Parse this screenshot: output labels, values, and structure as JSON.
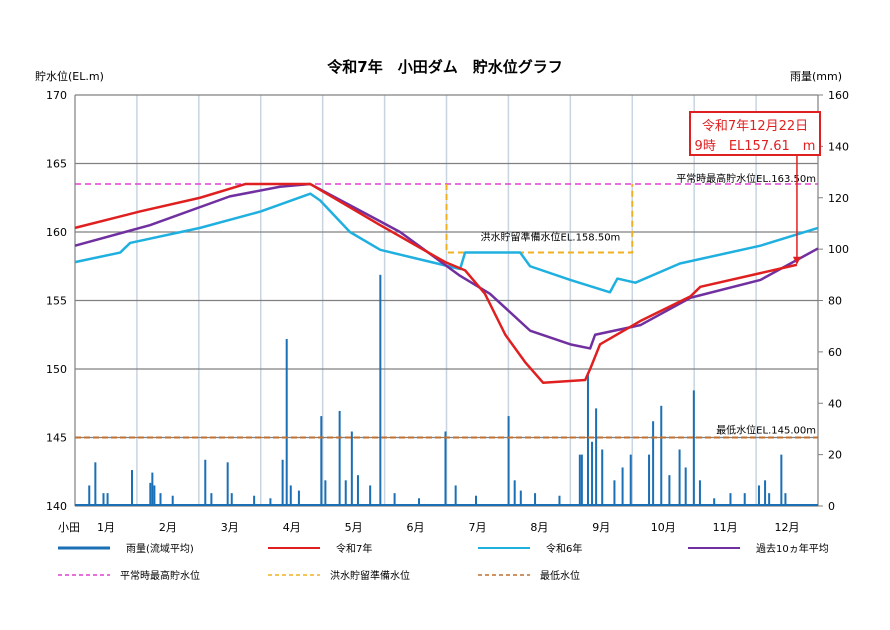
{
  "chart_data": {
    "type": "line",
    "title": "令和7年　小田ダム　貯水位グラフ",
    "ylabel_left": "貯水位(EL.m)",
    "ylabel_right": "雨量(mm)",
    "ylim_left": [
      140,
      170
    ],
    "yticks_left": [
      140,
      145,
      150,
      155,
      160,
      165,
      170
    ],
    "ylim_right": [
      0,
      160
    ],
    "yticks_right": [
      0,
      20,
      40,
      60,
      80,
      100,
      120,
      140,
      160
    ],
    "x_prefix_label": "小田",
    "months": [
      "1月",
      "2月",
      "3月",
      "4月",
      "5月",
      "6月",
      "7月",
      "8月",
      "9月",
      "10月",
      "11月",
      "12月"
    ],
    "x_unit": "month",
    "series": [
      {
        "name": "令和7年",
        "color": "#e02020",
        "axis": "left",
        "points": [
          [
            0,
            160.3
          ],
          [
            1.05,
            161.5
          ],
          [
            2.02,
            162.5
          ],
          [
            2.75,
            163.5
          ],
          [
            3.8,
            163.5
          ],
          [
            4.93,
            160.5
          ],
          [
            5.98,
            157.8
          ],
          [
            6.3,
            157.2
          ],
          [
            6.62,
            155.5
          ],
          [
            6.95,
            152.5
          ],
          [
            7.27,
            150.5
          ],
          [
            7.56,
            149
          ],
          [
            8.24,
            149.2
          ],
          [
            8.32,
            150
          ],
          [
            8.48,
            151.8
          ],
          [
            9.13,
            153.5
          ],
          [
            9.94,
            155.3
          ],
          [
            10.1,
            156
          ],
          [
            11.07,
            157
          ],
          [
            11.66,
            157.61
          ]
        ]
      },
      {
        "name": "令和6年",
        "color": "#20b0e0",
        "axis": "left",
        "points": [
          [
            0,
            157.8
          ],
          [
            0.73,
            158.5
          ],
          [
            0.89,
            159.2
          ],
          [
            2.02,
            160.3
          ],
          [
            3.0,
            161.5
          ],
          [
            3.8,
            162.8
          ],
          [
            3.96,
            162.3
          ],
          [
            4.44,
            160
          ],
          [
            4.93,
            158.7
          ],
          [
            5.57,
            158
          ],
          [
            6.22,
            157.3
          ],
          [
            6.3,
            158.5
          ],
          [
            7.19,
            158.5
          ],
          [
            7.35,
            157.5
          ],
          [
            8.0,
            156.5
          ],
          [
            8.64,
            155.6
          ],
          [
            8.76,
            156.6
          ],
          [
            9.05,
            156.3
          ],
          [
            9.77,
            157.7
          ],
          [
            11.07,
            159
          ],
          [
            12,
            160.3
          ]
        ]
      },
      {
        "name": "過去10ヵ年平均",
        "color": "#7030a0",
        "axis": "left",
        "points": [
          [
            0,
            159
          ],
          [
            1.21,
            160.5
          ],
          [
            2.5,
            162.6
          ],
          [
            3.31,
            163.3
          ],
          [
            3.8,
            163.5
          ],
          [
            5.25,
            160
          ],
          [
            6.22,
            156.8
          ],
          [
            6.7,
            155.5
          ],
          [
            7.35,
            152.8
          ],
          [
            8.0,
            151.8
          ],
          [
            8.32,
            151.5
          ],
          [
            8.4,
            152.5
          ],
          [
            9.13,
            153.2
          ],
          [
            9.94,
            155.2
          ],
          [
            11.07,
            156.5
          ],
          [
            12,
            158.8
          ]
        ]
      }
    ],
    "rainfall": {
      "name": "雨量(流域平均)",
      "color": "#1a6fb5",
      "axis": "right",
      "unit": "day-of-year",
      "bars": [
        [
          7,
          8
        ],
        [
          10,
          17
        ],
        [
          14,
          5
        ],
        [
          16,
          5
        ],
        [
          28,
          14
        ],
        [
          37,
          9
        ],
        [
          38,
          13
        ],
        [
          39,
          8
        ],
        [
          42,
          5
        ],
        [
          48,
          4
        ],
        [
          64,
          18
        ],
        [
          67,
          5
        ],
        [
          75,
          17
        ],
        [
          77,
          5
        ],
        [
          88,
          4
        ],
        [
          96,
          3
        ],
        [
          102,
          18
        ],
        [
          104,
          65
        ],
        [
          106,
          8
        ],
        [
          110,
          6
        ],
        [
          121,
          35
        ],
        [
          123,
          10
        ],
        [
          130,
          37
        ],
        [
          133,
          10
        ],
        [
          136,
          29
        ],
        [
          139,
          12
        ],
        [
          145,
          8
        ],
        [
          150,
          90
        ],
        [
          157,
          5
        ],
        [
          169,
          3
        ],
        [
          182,
          29
        ],
        [
          187,
          8
        ],
        [
          197,
          4
        ],
        [
          213,
          35
        ],
        [
          216,
          10
        ],
        [
          219,
          6
        ],
        [
          226,
          5
        ],
        [
          238,
          4
        ],
        [
          248,
          20
        ],
        [
          249,
          20
        ],
        [
          252,
          52
        ],
        [
          254,
          25
        ],
        [
          256,
          38
        ],
        [
          259,
          22
        ],
        [
          265,
          10
        ],
        [
          269,
          15
        ],
        [
          273,
          20
        ],
        [
          282,
          20
        ],
        [
          284,
          33
        ],
        [
          288,
          39
        ],
        [
          292,
          12
        ],
        [
          297,
          22
        ],
        [
          300,
          15
        ],
        [
          304,
          45
        ],
        [
          307,
          10
        ],
        [
          314,
          3
        ],
        [
          322,
          5
        ],
        [
          329,
          5
        ],
        [
          336,
          8
        ],
        [
          339,
          10
        ],
        [
          341,
          5
        ],
        [
          347,
          20
        ],
        [
          349,
          5
        ]
      ]
    },
    "reference_lines": [
      {
        "name": "平常時最高貯水位",
        "label": "平常時最高貯水位EL.163.50m",
        "value": 163.5,
        "color": "#e040d0"
      },
      {
        "name": "洪水貯留準備水位",
        "label": "洪水貯留準備水位EL.158.50m",
        "value": 158.5,
        "from_month": 6,
        "to_month": 9,
        "color": "#f0b020"
      },
      {
        "name": "最低水位",
        "label": "最低水位EL.145.00m",
        "value": 145.0,
        "color": "#c07030"
      }
    ],
    "annotation": {
      "line1": "令和7年12月22日",
      "line2": "9時　EL157.61　m",
      "color": "#e02020"
    },
    "grid": true,
    "legend_placement": "bottom"
  }
}
